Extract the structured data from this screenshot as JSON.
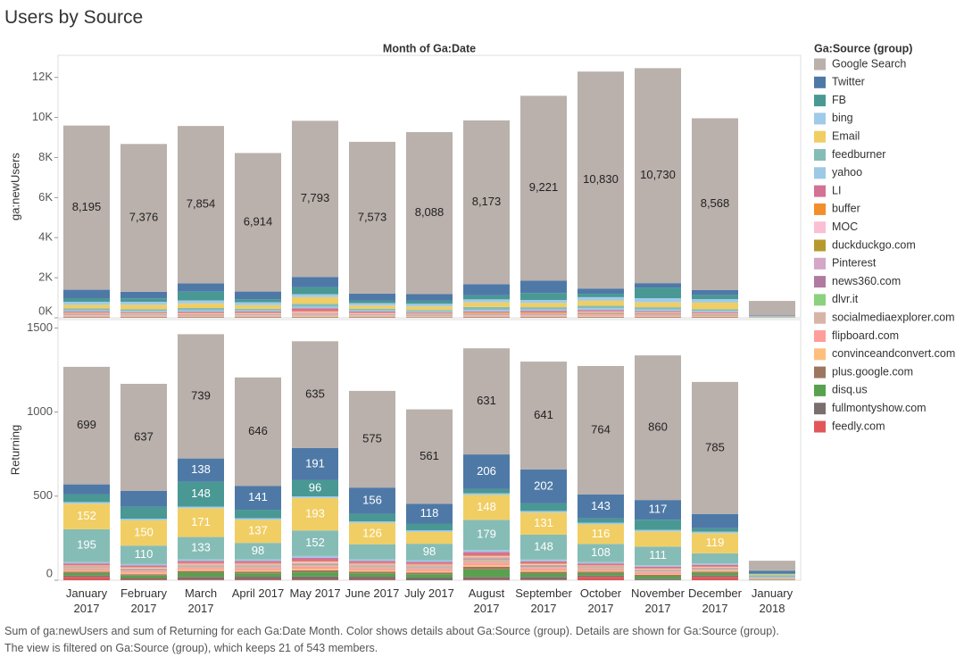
{
  "chart_data": {
    "type": "bar",
    "title": "Users by Source",
    "subtitle": "Month of Ga:Date",
    "legend_title": "Ga:Source (group)",
    "footnote": [
      "Sum of ga:newUsers and sum of Returning for each Ga:Date Month.  Color shows details about Ga:Source (group).  Details are shown for Ga:Source (group).",
      "The view is filtered on Ga:Source (group), which keeps 21 of 543 members."
    ],
    "categories": [
      "January 2017",
      "February 2017",
      "March 2017",
      "April 2017",
      "May 2017",
      "June 2017",
      "July 2017",
      "August 2017",
      "September 2017",
      "October 2017",
      "November 2017",
      "December 2017",
      "January 2018"
    ],
    "panels": [
      {
        "ylabel": "ga:newUsers",
        "ylim": [
          0,
          13100
        ],
        "yticks": [
          {
            "value": 0,
            "label": "0K"
          },
          {
            "value": 2000,
            "label": "2K"
          },
          {
            "value": 4000,
            "label": "4K"
          },
          {
            "value": 6000,
            "label": "6K"
          },
          {
            "value": 8000,
            "label": "8K"
          },
          {
            "value": 10000,
            "label": "10K"
          },
          {
            "value": 12000,
            "label": "12K"
          }
        ]
      },
      {
        "ylabel": "Returning",
        "ylim": [
          0,
          1550
        ],
        "yticks": [
          0,
          500,
          1000,
          1500
        ]
      }
    ],
    "grid": false,
    "series": [
      {
        "name": "Google Search",
        "color": "#bab0ac",
        "values": [
          [
            8195,
            7376,
            7854,
            6914,
            7793,
            7573,
            8088,
            8173,
            9221,
            10830,
            10730,
            8568,
            720
          ],
          [
            699,
            637,
            739,
            646,
            635,
            575,
            561,
            631,
            641,
            764,
            860,
            785,
            60
          ]
        ],
        "value_labels": [
          [
            "8,195",
            "7,376",
            "7,854",
            "6,914",
            "7,793",
            "7,573",
            "8,088",
            "8,173",
            "9,221",
            "10,830",
            "10,730",
            "8,568",
            null
          ],
          [
            "699",
            "637",
            "739",
            "646",
            "635",
            "575",
            "561",
            "631",
            "641",
            "764",
            "860",
            "785",
            null
          ]
        ]
      },
      {
        "name": "Twitter",
        "color": "#4e79a7",
        "values": [
          [
            420,
            330,
            420,
            380,
            520,
            360,
            330,
            560,
            620,
            260,
            230,
            260,
            30
          ],
          [
            60,
            95,
            138,
            141,
            191,
            156,
            118,
            206,
            202,
            143,
            117,
            85,
            15
          ]
        ],
        "value_labels": [
          [
            null,
            null,
            null,
            null,
            null,
            null,
            null,
            null,
            null,
            null,
            null,
            null,
            null
          ],
          [
            null,
            null,
            "138",
            "141",
            "191",
            "156",
            "118",
            "206",
            "202",
            "143",
            "117",
            null,
            null
          ]
        ]
      },
      {
        "name": "FB",
        "color": "#499894",
        "values": [
          [
            180,
            170,
            430,
            150,
            340,
            120,
            150,
            200,
            350,
            170,
            520,
            200,
            15
          ],
          [
            45,
            70,
            148,
            50,
            96,
            45,
            40,
            25,
            45,
            25,
            60,
            20,
            5
          ]
        ],
        "value_labels": [
          [
            null,
            null,
            null,
            null,
            null,
            null,
            null,
            null,
            null,
            null,
            null,
            null,
            null
          ],
          [
            null,
            null,
            "148",
            null,
            "96",
            null,
            null,
            null,
            null,
            null,
            null,
            null,
            null
          ]
        ]
      },
      {
        "name": "bing",
        "color": "#a0cbe8",
        "values": [
          [
            150,
            150,
            150,
            150,
            150,
            120,
            130,
            150,
            150,
            180,
            210,
            170,
            10
          ],
          [
            10,
            10,
            10,
            10,
            10,
            10,
            10,
            10,
            10,
            10,
            10,
            10,
            2
          ]
        ]
      },
      {
        "name": "Email",
        "color": "#f1ce63",
        "values": [
          [
            180,
            220,
            230,
            180,
            330,
            160,
            180,
            230,
            210,
            250,
            240,
            330,
            10
          ],
          [
            152,
            150,
            171,
            137,
            193,
            126,
            70,
            148,
            131,
            116,
            90,
            119,
            5
          ]
        ],
        "value_labels": [
          [
            null,
            null,
            null,
            null,
            null,
            null,
            null,
            null,
            null,
            null,
            null,
            null,
            null
          ],
          [
            "152",
            "150",
            "171",
            "137",
            "193",
            "126",
            null,
            "148",
            "131",
            "116",
            null,
            "119",
            null
          ]
        ]
      },
      {
        "name": "feedburner",
        "color": "#86bcb6",
        "values": [
          [
            90,
            90,
            110,
            80,
            150,
            80,
            70,
            140,
            110,
            120,
            110,
            90,
            20
          ],
          [
            195,
            110,
            133,
            98,
            152,
            90,
            98,
            179,
            148,
            108,
            111,
            60,
            10
          ]
        ],
        "value_labels": [
          [
            null,
            null,
            null,
            null,
            null,
            null,
            null,
            null,
            null,
            null,
            null,
            null,
            null
          ],
          [
            "195",
            "110",
            "133",
            "98",
            "152",
            null,
            "98",
            "179",
            "148",
            "108",
            "111",
            null,
            null
          ]
        ]
      },
      {
        "name": "yahoo",
        "color": "#9dc9e6",
        "values": [
          [
            70,
            60,
            80,
            60,
            70,
            60,
            60,
            80,
            70,
            100,
            90,
            60,
            10
          ],
          [
            8,
            8,
            10,
            10,
            10,
            10,
            10,
            12,
            10,
            8,
            8,
            8,
            2
          ]
        ]
      },
      {
        "name": "LI",
        "color": "#d37295",
        "values": [
          [
            50,
            40,
            50,
            60,
            140,
            60,
            40,
            50,
            80,
            60,
            50,
            50,
            5
          ],
          [
            10,
            10,
            12,
            12,
            20,
            12,
            12,
            20,
            12,
            10,
            10,
            10,
            2
          ]
        ]
      },
      {
        "name": "buffer",
        "color": "#f28e2b",
        "values": [
          [
            20,
            20,
            30,
            20,
            40,
            20,
            20,
            30,
            30,
            20,
            20,
            20,
            2
          ],
          [
            3,
            3,
            4,
            4,
            4,
            4,
            4,
            5,
            4,
            3,
            3,
            3,
            1
          ]
        ]
      },
      {
        "name": "MOC",
        "color": "#fabfd2",
        "values": [
          [
            40,
            30,
            40,
            40,
            60,
            40,
            30,
            40,
            40,
            40,
            30,
            30,
            2
          ],
          [
            5,
            5,
            6,
            6,
            8,
            6,
            6,
            8,
            6,
            5,
            5,
            5,
            1
          ]
        ]
      },
      {
        "name": "duckduckgo.com",
        "color": "#b6992d",
        "values": [
          [
            20,
            20,
            20,
            20,
            20,
            20,
            20,
            20,
            20,
            30,
            30,
            20,
            2
          ],
          [
            3,
            3,
            3,
            3,
            3,
            3,
            3,
            4,
            3,
            3,
            3,
            3,
            1
          ]
        ]
      },
      {
        "name": "Pinterest",
        "color": "#d4a6c8",
        "values": [
          [
            20,
            20,
            20,
            20,
            30,
            20,
            20,
            20,
            20,
            30,
            30,
            20,
            2
          ],
          [
            3,
            3,
            3,
            3,
            3,
            3,
            3,
            4,
            3,
            3,
            3,
            3,
            1
          ]
        ]
      },
      {
        "name": "news360.com",
        "color": "#b07aa1",
        "values": [
          [
            20,
            20,
            20,
            20,
            20,
            20,
            20,
            20,
            20,
            20,
            20,
            20,
            2
          ],
          [
            3,
            3,
            3,
            3,
            3,
            3,
            3,
            4,
            3,
            3,
            3,
            3,
            1
          ]
        ]
      },
      {
        "name": "dlvr.it",
        "color": "#8cd17d",
        "values": [
          [
            10,
            10,
            10,
            10,
            10,
            10,
            10,
            10,
            10,
            10,
            10,
            10,
            1
          ],
          [
            2,
            2,
            2,
            2,
            2,
            2,
            2,
            3,
            2,
            2,
            2,
            2,
            1
          ]
        ]
      },
      {
        "name": "socialmediaexplorer.com",
        "color": "#d7b5a6",
        "values": [
          [
            30,
            20,
            20,
            20,
            40,
            20,
            20,
            30,
            30,
            40,
            30,
            20,
            2
          ],
          [
            5,
            5,
            8,
            10,
            10,
            10,
            10,
            15,
            10,
            5,
            5,
            5,
            1
          ]
        ]
      },
      {
        "name": "flipboard.com",
        "color": "#ff9d9a",
        "values": [
          [
            30,
            30,
            20,
            30,
            40,
            30,
            20,
            30,
            30,
            50,
            40,
            20,
            2
          ],
          [
            10,
            10,
            10,
            12,
            12,
            12,
            12,
            15,
            12,
            10,
            10,
            2,
            2
          ]
        ]
      },
      {
        "name": "convinceandconvert.com",
        "color": "#ffbe7d",
        "values": [
          [
            20,
            20,
            20,
            20,
            30,
            20,
            20,
            20,
            20,
            30,
            20,
            20,
            2
          ],
          [
            5,
            8,
            8,
            8,
            10,
            8,
            8,
            10,
            8,
            5,
            5,
            5,
            1
          ]
        ]
      },
      {
        "name": "plus.google.com",
        "color": "#9d7660",
        "values": [
          [
            20,
            20,
            20,
            20,
            20,
            20,
            10,
            20,
            20,
            20,
            20,
            20,
            2
          ],
          [
            8,
            8,
            10,
            10,
            12,
            10,
            10,
            15,
            10,
            8,
            8,
            8,
            1
          ]
        ]
      },
      {
        "name": "disq.us",
        "color": "#59a14f",
        "values": [
          [
            10,
            10,
            10,
            10,
            10,
            10,
            10,
            10,
            10,
            10,
            10,
            10,
            1
          ],
          [
            15,
            15,
            25,
            20,
            25,
            20,
            20,
            45,
            20,
            15,
            15,
            15,
            2
          ]
        ]
      },
      {
        "name": "fullmontyshow.com",
        "color": "#79706e",
        "values": [
          [
            10,
            10,
            10,
            10,
            10,
            10,
            10,
            10,
            10,
            10,
            10,
            10,
            1
          ],
          [
            8,
            8,
            15,
            16,
            17,
            16,
            16,
            15,
            16,
            8,
            8,
            8,
            1
          ]
        ]
      },
      {
        "name": "feedly.com",
        "color": "#e15759",
        "values": [
          [
            10,
            10,
            10,
            10,
            10,
            10,
            10,
            10,
            10,
            10,
            10,
            10,
            1
          ],
          [
            20,
            5,
            5,
            5,
            5,
            5,
            0,
            5,
            4,
            20,
            1,
            20,
            1
          ]
        ]
      }
    ]
  }
}
